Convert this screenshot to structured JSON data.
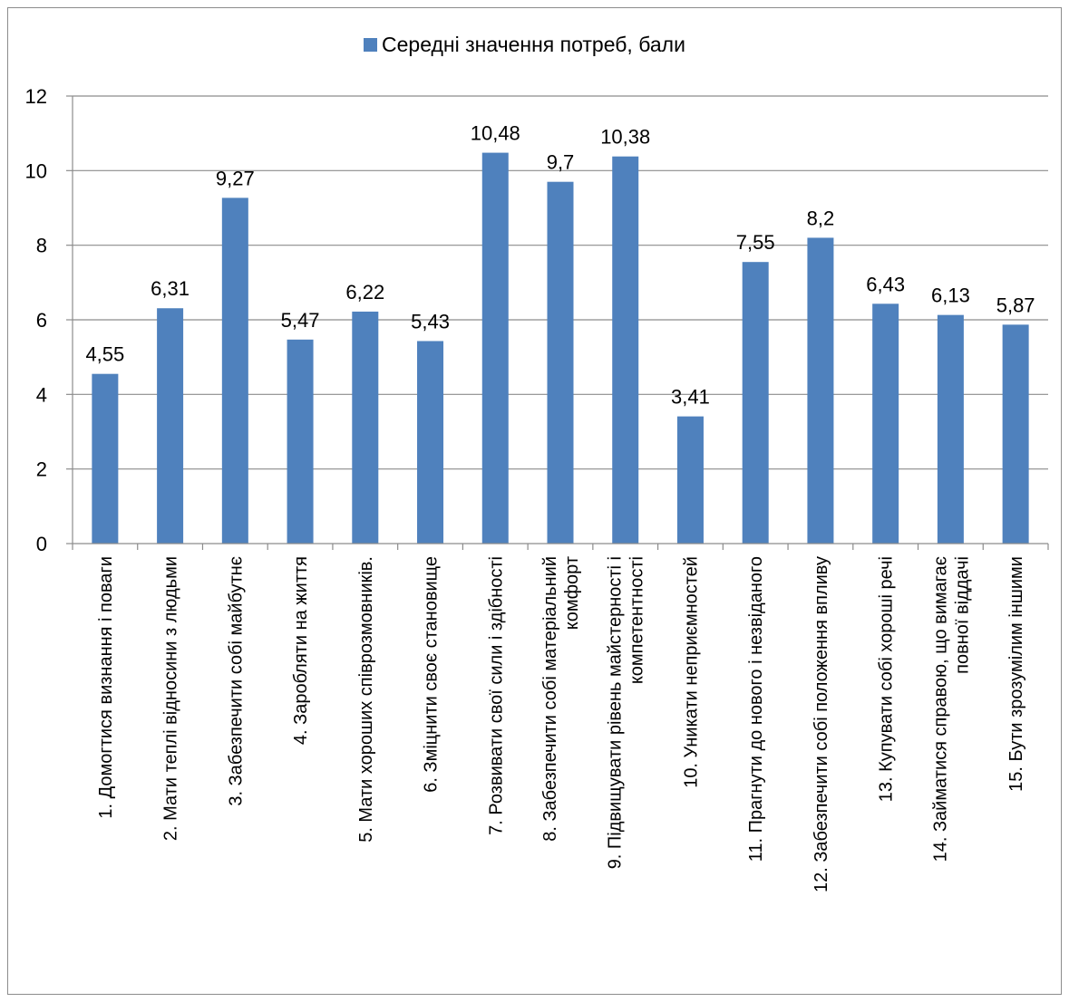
{
  "chart_data": {
    "type": "bar",
    "title": "",
    "xlabel": "",
    "ylabel": "",
    "ylim": [
      0,
      12
    ],
    "yticks": [
      0,
      2,
      4,
      6,
      8,
      10,
      12
    ],
    "grid": true,
    "legend_position": "top",
    "colors": {
      "bar": "#4f81bd",
      "grid": "#8c8c8c"
    },
    "series": [
      {
        "name": "Середні значення потреб,  бали",
        "values": [
          4.55,
          6.31,
          9.27,
          5.47,
          6.22,
          5.43,
          10.48,
          9.7,
          10.38,
          3.41,
          7.55,
          8.2,
          6.43,
          6.13,
          5.87
        ],
        "labels": [
          "4,55",
          "6,31",
          "9,27",
          "5,47",
          "6,22",
          "5,43",
          "10,48",
          "9,7",
          "10,38",
          "3,41",
          "7,55",
          "8,2",
          "6,43",
          "6,13",
          "5,87"
        ]
      }
    ],
    "categories": [
      [
        "1. Домогтися визнання і поваги"
      ],
      [
        "2. Мати теплі відносини з людьми"
      ],
      [
        "3. Забезпечити собі майбутнє"
      ],
      [
        "4. Заробляти на життя"
      ],
      [
        "5. Мати хороших співрозмовників."
      ],
      [
        "6. Зміцнити своє становище"
      ],
      [
        "7. Розвивати свої сили і здібності"
      ],
      [
        "8. Забезпечити собі матеріальний",
        "комфорт"
      ],
      [
        "9. Підвищувати рівень майстерності і",
        "компетентності"
      ],
      [
        "10. Уникати неприємностей"
      ],
      [
        "11. Прагнути до нового і незвіданого"
      ],
      [
        "12. Забезпечити собі положення впливу"
      ],
      [
        "13. Купувати собі хороші речі"
      ],
      [
        "14. Займатися справою, що вимагає",
        "повної віддачі"
      ],
      [
        "15. Бути зрозумілим іншими"
      ]
    ]
  }
}
